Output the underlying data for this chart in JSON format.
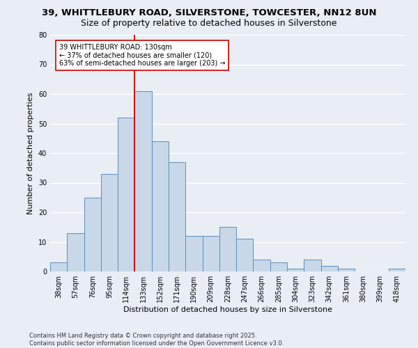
{
  "title": "39, WHITTLEBURY ROAD, SILVERSTONE, TOWCESTER, NN12 8UN",
  "subtitle": "Size of property relative to detached houses in Silverstone",
  "xlabel": "Distribution of detached houses by size in Silverstone",
  "ylabel": "Number of detached properties",
  "categories": [
    "38sqm",
    "57sqm",
    "76sqm",
    "95sqm",
    "114sqm",
    "133sqm",
    "152sqm",
    "171sqm",
    "190sqm",
    "209sqm",
    "228sqm",
    "247sqm",
    "266sqm",
    "285sqm",
    "304sqm",
    "323sqm",
    "342sqm",
    "361sqm",
    "380sqm",
    "399sqm",
    "418sqm"
  ],
  "values": [
    3,
    13,
    25,
    33,
    52,
    61,
    44,
    37,
    12,
    12,
    15,
    11,
    4,
    3,
    1,
    4,
    2,
    1,
    0,
    0,
    1
  ],
  "bar_color": "#c8d8e8",
  "bar_edge_color": "#5b8db8",
  "red_line_index": 4.5,
  "red_line_color": "#cc0000",
  "annotation_text": "39 WHITTLEBURY ROAD: 130sqm\n← 37% of detached houses are smaller (120)\n63% of semi-detached houses are larger (203) →",
  "annotation_box_color": "#ffffff",
  "annotation_box_edge": "#cc0000",
  "ylim": [
    0,
    80
  ],
  "yticks": [
    0,
    10,
    20,
    30,
    40,
    50,
    60,
    70,
    80
  ],
  "background_color": "#e8eef4",
  "grid_color": "#ffffff",
  "footer": "Contains HM Land Registry data © Crown copyright and database right 2025.\nContains public sector information licensed under the Open Government Licence v3.0.",
  "title_fontsize": 9.5,
  "subtitle_fontsize": 9,
  "xlabel_fontsize": 8,
  "ylabel_fontsize": 8,
  "tick_fontsize": 7,
  "annotation_fontsize": 7,
  "footer_fontsize": 6
}
